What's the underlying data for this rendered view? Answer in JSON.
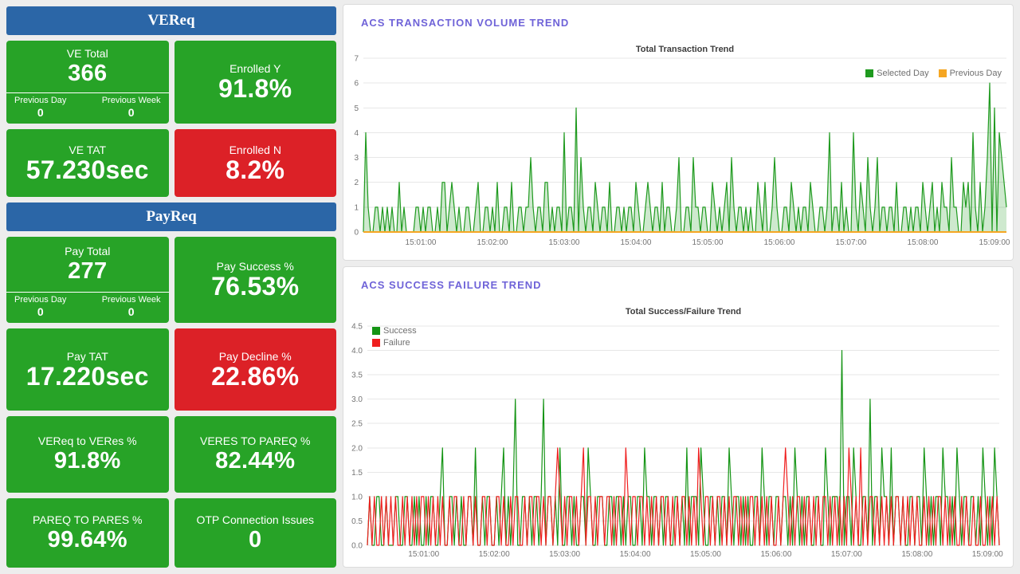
{
  "theme": {
    "bg": "#ededed",
    "blue_header": "#2b66a7",
    "tile_green": "#27a327",
    "tile_red": "#dc2127",
    "panel_title_color": "#6f63d8",
    "chart_green": "#1f9a1f",
    "chart_orange": "#f5a623",
    "chart_red": "#ef1f1f"
  },
  "vereq": {
    "header": "VEReq",
    "ve_total": {
      "label": "VE Total",
      "value": "366",
      "prev_day_label": "Previous Day",
      "prev_day_value": "0",
      "prev_week_label": "Previous Week",
      "prev_week_value": "0"
    },
    "enrolled_y": {
      "label": "Enrolled Y",
      "value": "91.8%"
    },
    "ve_tat": {
      "label": "VE TAT",
      "value": "57.230sec"
    },
    "enrolled_n": {
      "label": "Enrolled N",
      "value": "8.2%"
    }
  },
  "payreq": {
    "header": "PayReq",
    "pay_total": {
      "label": "Pay Total",
      "value": "277",
      "prev_day_label": "Previous Day",
      "prev_day_value": "0",
      "prev_week_label": "Previous Week",
      "prev_week_value": "0"
    },
    "pay_success": {
      "label": "Pay Success %",
      "value": "76.53%"
    },
    "pay_tat": {
      "label": "Pay TAT",
      "value": "17.220sec"
    },
    "pay_decline": {
      "label": "Pay Decline %",
      "value": "22.86%"
    },
    "vereq_to_veres": {
      "label": "VEReq to VERes %",
      "value": "91.8%"
    },
    "veres_to_pareq": {
      "label": "VERES TO PAREQ %",
      "value": "82.44%"
    },
    "pareq_to_pares": {
      "label": "PAREQ TO PARES %",
      "value": "99.64%"
    },
    "otp_issues": {
      "label": "OTP Connection Issues",
      "value": "0"
    }
  },
  "panels": {
    "volume_title": "ACS TRANSACTION VOLUME TREND",
    "success_failure_title": "ACS SUCCESS FAILURE TREND"
  },
  "chart_data": [
    {
      "type": "area",
      "title": "Total Transaction Trend",
      "ylabel": "",
      "xlabel": "",
      "ylim": [
        0,
        7
      ],
      "grid": true,
      "legend_position": "top-right",
      "yticks": [
        {
          "value": 0,
          "label": "0"
        },
        {
          "value": 1,
          "label": "1"
        },
        {
          "value": 2,
          "label": "2"
        },
        {
          "value": 3,
          "label": "3"
        },
        {
          "value": 4,
          "label": "4"
        },
        {
          "value": 5,
          "label": "5"
        },
        {
          "value": 6,
          "label": "6"
        },
        {
          "value": 7,
          "label": "7"
        }
      ],
      "x_start_seconds": 12,
      "x_interval_seconds": 2,
      "xticks": [
        {
          "label": "15:01:00",
          "seconds": 60
        },
        {
          "label": "15:02:00",
          "seconds": 120
        },
        {
          "label": "15:03:00",
          "seconds": 180
        },
        {
          "label": "15:04:00",
          "seconds": 240
        },
        {
          "label": "15:05:00",
          "seconds": 300
        },
        {
          "label": "15:06:00",
          "seconds": 360
        },
        {
          "label": "15:07:00",
          "seconds": 420
        },
        {
          "label": "15:08:00",
          "seconds": 480
        },
        {
          "label": "15:09:00",
          "seconds": 540
        }
      ],
      "legend": [
        {
          "label": "Selected Day",
          "color": "#1f9a1f"
        },
        {
          "label": "Previous Day",
          "color": "#f5a623"
        }
      ],
      "series": [
        {
          "name": "Selected Day",
          "color": "#1f9a1f",
          "width": 1.2,
          "area": "rgba(31,154,31,0.22)",
          "encoded": [
            "0410011010",
            "1010020100",
            "0011010110",
            "0102201210",
            "1001100120",
            "0110102001",
            "1020011011",
            "3101102201",
            "0110401105",
            "0310110210",
            "1102001101",
            "0110210012",
            "1011020110",
            "0130011031",
            "1011002101",
            "0120310110",
            "1010021020",
            "0131001102",
            "1010110210",
            "0110140110",
            "2010041021",
            "0310130110",
            "1102001101",
            "0110210120",
            "1021103110",
            "0212041020",
            "1360504321"
          ]
        },
        {
          "name": "Previous Day",
          "color": "#f5a623",
          "width": 2,
          "constant": 0
        }
      ]
    },
    {
      "type": "line",
      "title": "Total Success/Failure Trend",
      "ylabel": "",
      "xlabel": "",
      "ylim": [
        0,
        4.5
      ],
      "grid": true,
      "legend_position": "top-left",
      "yticks": [
        {
          "value": 0,
          "label": "0.0"
        },
        {
          "value": 0.5,
          "label": "0.5"
        },
        {
          "value": 1,
          "label": "1.0"
        },
        {
          "value": 1.5,
          "label": "1.5"
        },
        {
          "value": 2,
          "label": "2.0"
        },
        {
          "value": 2.5,
          "label": "2.5"
        },
        {
          "value": 3,
          "label": "3.0"
        },
        {
          "value": 3.5,
          "label": "3.5"
        },
        {
          "value": 4,
          "label": "4.0"
        },
        {
          "value": 4.5,
          "label": "4.5"
        }
      ],
      "x_start_seconds": 12,
      "x_interval_seconds": 2,
      "xticks": [
        {
          "label": "15:01:00",
          "seconds": 60
        },
        {
          "label": "15:02:00",
          "seconds": 120
        },
        {
          "label": "15:03:00",
          "seconds": 180
        },
        {
          "label": "15:04:00",
          "seconds": 240
        },
        {
          "label": "15:05:00",
          "seconds": 300
        },
        {
          "label": "15:06:00",
          "seconds": 360
        },
        {
          "label": "15:07:00",
          "seconds": 420
        },
        {
          "label": "15:08:00",
          "seconds": 480
        },
        {
          "label": "15:09:00",
          "seconds": 540
        }
      ],
      "legend": [
        {
          "label": "Success",
          "color": "#149414"
        },
        {
          "label": "Failure",
          "color": "#ef1f1f"
        }
      ],
      "series": [
        {
          "name": "Success",
          "color": "#149414",
          "width": 1.2,
          "encoded": [
            "0100110010",
            "0011001100",
            "1010010110",
            "0120011010",
            "1001102001",
            "0110010120",
            "1013001101",
            "0110130110",
            "1020011010",
            "0110210011",
            "1001101101",
            "0110011021",
            "1011010110",
            "0110102011",
            "1021001101",
            "0110210110",
            "1010011021",
            "0110110110",
            "1021010110",
            "0110021011",
            "1040110210",
            "0110301102",
            "1102011010",
            "0110110210",
            "1011021101",
            "0210110110",
            "1021010210"
          ]
        },
        {
          "name": "Failure",
          "color": "#ef1f1f",
          "width": 1.2,
          "encoded": [
            "0101001010",
            "1010010101",
            "0101101010",
            "1010010110",
            "0101101001",
            "1010011010",
            "0101100101",
            "1011010110",
            "1210101101",
            "0120110101",
            "1011010110",
            "2101101101",
            "0101011010",
            "1010110101",
            "0210110101",
            "1010101101",
            "0101101010",
            "1010010121",
            "0101101010",
            "1010110101",
            "0101021010",
            "2010110101",
            "0101011010",
            "1010100101",
            "0101101010",
            "1001010010",
            "0100101010"
          ]
        }
      ]
    }
  ]
}
